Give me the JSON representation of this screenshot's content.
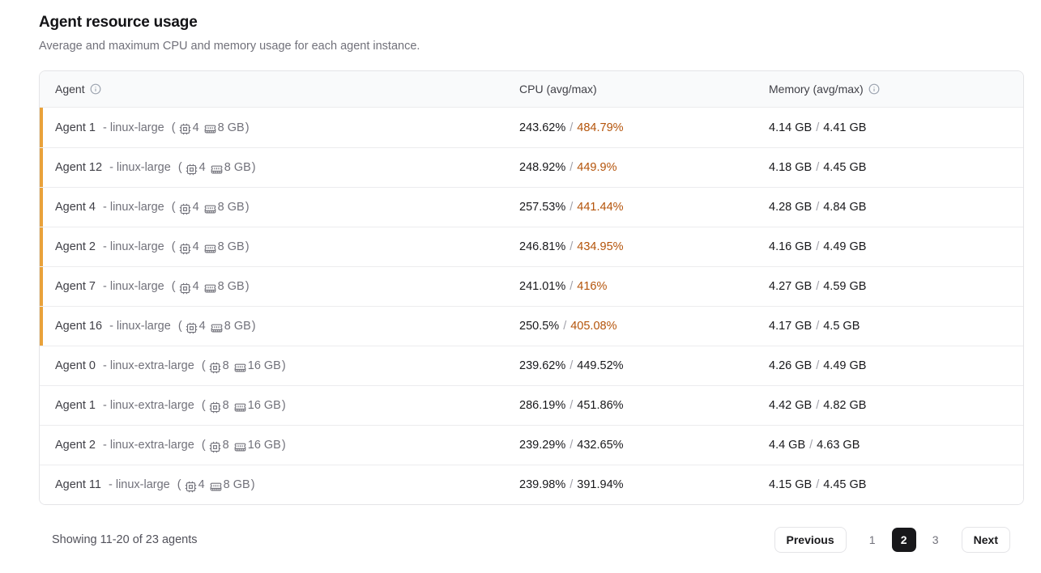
{
  "page": {
    "title": "Agent resource usage",
    "subtitle": "Average and maximum CPU and memory usage for each agent instance."
  },
  "table": {
    "headers": {
      "agent": "Agent",
      "cpu": "CPU (avg/max)",
      "memory": "Memory (avg/max)"
    },
    "sep": "/",
    "spec": {
      "open": "(",
      "close": ")"
    },
    "rows": [
      {
        "name": "Agent 1",
        "type": "- linux-large",
        "cpus": "4",
        "mem": "8 GB",
        "cpu_avg": "243.62%",
        "cpu_max": "484.79%",
        "mem_avg": "4.14 GB",
        "mem_max": "4.41 GB",
        "high_cpu": true
      },
      {
        "name": "Agent 12",
        "type": "- linux-large",
        "cpus": "4",
        "mem": "8 GB",
        "cpu_avg": "248.92%",
        "cpu_max": "449.9%",
        "mem_avg": "4.18 GB",
        "mem_max": "4.45 GB",
        "high_cpu": true
      },
      {
        "name": "Agent 4",
        "type": "- linux-large",
        "cpus": "4",
        "mem": "8 GB",
        "cpu_avg": "257.53%",
        "cpu_max": "441.44%",
        "mem_avg": "4.28 GB",
        "mem_max": "4.84 GB",
        "high_cpu": true
      },
      {
        "name": "Agent 2",
        "type": "- linux-large",
        "cpus": "4",
        "mem": "8 GB",
        "cpu_avg": "246.81%",
        "cpu_max": "434.95%",
        "mem_avg": "4.16 GB",
        "mem_max": "4.49 GB",
        "high_cpu": true
      },
      {
        "name": "Agent 7",
        "type": "- linux-large",
        "cpus": "4",
        "mem": "8 GB",
        "cpu_avg": "241.01%",
        "cpu_max": "416%",
        "mem_avg": "4.27 GB",
        "mem_max": "4.59 GB",
        "high_cpu": true
      },
      {
        "name": "Agent 16",
        "type": "- linux-large",
        "cpus": "4",
        "mem": "8 GB",
        "cpu_avg": "250.5%",
        "cpu_max": "405.08%",
        "mem_avg": "4.17 GB",
        "mem_max": "4.5 GB",
        "high_cpu": true
      },
      {
        "name": "Agent 0",
        "type": "- linux-extra-large",
        "cpus": "8",
        "mem": "16 GB",
        "cpu_avg": "239.62%",
        "cpu_max": "449.52%",
        "mem_avg": "4.26 GB",
        "mem_max": "4.49 GB",
        "high_cpu": false
      },
      {
        "name": "Agent 1",
        "type": "- linux-extra-large",
        "cpus": "8",
        "mem": "16 GB",
        "cpu_avg": "286.19%",
        "cpu_max": "451.86%",
        "mem_avg": "4.42 GB",
        "mem_max": "4.82 GB",
        "high_cpu": false
      },
      {
        "name": "Agent 2",
        "type": "- linux-extra-large",
        "cpus": "8",
        "mem": "16 GB",
        "cpu_avg": "239.29%",
        "cpu_max": "432.65%",
        "mem_avg": "4.4 GB",
        "mem_max": "4.63 GB",
        "high_cpu": false
      },
      {
        "name": "Agent 11",
        "type": "- linux-large",
        "cpus": "4",
        "mem": "8 GB",
        "cpu_avg": "239.98%",
        "cpu_max": "391.94%",
        "mem_avg": "4.15 GB",
        "mem_max": "4.45 GB",
        "high_cpu": false
      }
    ]
  },
  "footer": {
    "summary": "Showing 11-20 of 23 agents"
  },
  "pagination": {
    "previous_label": "Previous",
    "next_label": "Next",
    "pages": [
      "1",
      "2",
      "3"
    ],
    "active_page": "2"
  },
  "colors": {
    "high_cpu_bar": "#e9a23b",
    "high_cpu_text": "#b45309",
    "active_page_bg": "#18181b",
    "header_bg": "#f9fafb",
    "border": "#e4e4e7"
  }
}
